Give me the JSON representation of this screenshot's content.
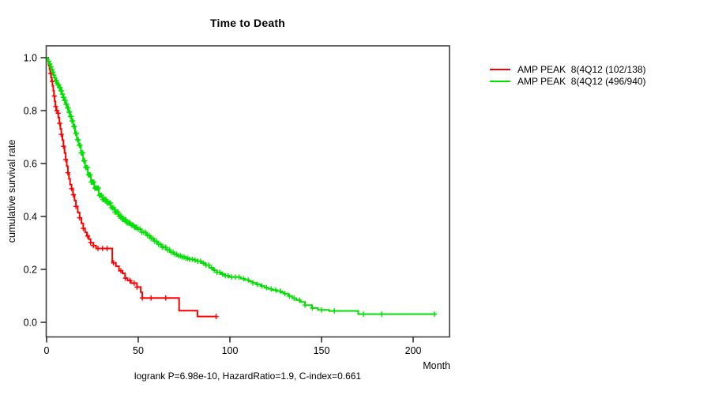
{
  "chart_data": {
    "type": "line",
    "subtype": "kaplan-meier-step",
    "title": "Time to Death",
    "xlabel": "Month",
    "ylabel": "cumulative survival rate",
    "footnote": "logrank P=6.98e-10, HazardRatio=1.9, C-index=0.661",
    "xlim": [
      0,
      220
    ],
    "ylim": [
      0.0,
      1.0
    ],
    "xticks": [
      0,
      50,
      100,
      150,
      200
    ],
    "yticks": [
      0.0,
      0.2,
      0.4,
      0.6,
      0.8,
      1.0
    ],
    "grid": "off",
    "legend_position": "right-outside",
    "axis_box_color": "#3f3f3f",
    "tick_color": "#000000",
    "series": [
      {
        "name": "AMP PEAK  8(4Q12 (102/138)",
        "color": "#ff0000",
        "points": [
          [
            0,
            1.0
          ],
          [
            0.8,
            0.985
          ],
          [
            1.2,
            0.97
          ],
          [
            1.6,
            0.955
          ],
          [
            2.0,
            0.94
          ],
          [
            2.4,
            0.925
          ],
          [
            2.8,
            0.91
          ],
          [
            3.2,
            0.893
          ],
          [
            3.6,
            0.875
          ],
          [
            4.0,
            0.855
          ],
          [
            4.4,
            0.835
          ],
          [
            4.8,
            0.815
          ],
          [
            5.2,
            0.8
          ],
          [
            5.8,
            0.79
          ],
          [
            6.4,
            0.773
          ],
          [
            7.0,
            0.752
          ],
          [
            7.5,
            0.731
          ],
          [
            8.0,
            0.71
          ],
          [
            8.6,
            0.688
          ],
          [
            9.2,
            0.665
          ],
          [
            9.8,
            0.64
          ],
          [
            10.4,
            0.615
          ],
          [
            11.0,
            0.59
          ],
          [
            11.6,
            0.565
          ],
          [
            12.2,
            0.542
          ],
          [
            12.8,
            0.52
          ],
          [
            13.6,
            0.505
          ],
          [
            14.4,
            0.482
          ],
          [
            15.2,
            0.46
          ],
          [
            16.0,
            0.438
          ],
          [
            17.0,
            0.415
          ],
          [
            18.0,
            0.395
          ],
          [
            19.0,
            0.374
          ],
          [
            20.0,
            0.355
          ],
          [
            21.0,
            0.34
          ],
          [
            22.0,
            0.326
          ],
          [
            23.0,
            0.314
          ],
          [
            24.0,
            0.301
          ],
          [
            25.5,
            0.29
          ],
          [
            27.0,
            0.279
          ],
          [
            35.8,
            0.225
          ],
          [
            37.8,
            0.212
          ],
          [
            39.5,
            0.195
          ],
          [
            41.4,
            0.185
          ],
          [
            42.8,
            0.167
          ],
          [
            44.2,
            0.158
          ],
          [
            46.0,
            0.148
          ],
          [
            49.3,
            0.133
          ],
          [
            51.4,
            0.113
          ],
          [
            52.2,
            0.092
          ],
          [
            72.3,
            0.044
          ],
          [
            82.3,
            0.022
          ],
          [
            92.5,
            0.022
          ]
        ],
        "censor_months": [
          2.2,
          3.1,
          4.2,
          5.0,
          5.6,
          6.3,
          7.1,
          8.0,
          9.2,
          10.4,
          11.6,
          13.6,
          14.6,
          16.0,
          18.0,
          20.0,
          22.4,
          24.0,
          25.5,
          28.0,
          30.5,
          33.0,
          36.5,
          40.5,
          43.0,
          45.5,
          47.8,
          49.3,
          52.2,
          57.0,
          65.0,
          92.5
        ]
      },
      {
        "name": "AMP PEAK  8(4Q12 (496/940)",
        "color": "#00e000",
        "points": [
          [
            0,
            1.0
          ],
          [
            0.5,
            0.995
          ],
          [
            1.0,
            0.986
          ],
          [
            1.5,
            0.976
          ],
          [
            2.0,
            0.966
          ],
          [
            2.6,
            0.955
          ],
          [
            3.2,
            0.945
          ],
          [
            3.8,
            0.934
          ],
          [
            4.4,
            0.924
          ],
          [
            5.0,
            0.913
          ],
          [
            5.6,
            0.903
          ],
          [
            6.2,
            0.897
          ],
          [
            6.9,
            0.887
          ],
          [
            7.6,
            0.875
          ],
          [
            8.3,
            0.862
          ],
          [
            9.0,
            0.85
          ],
          [
            9.7,
            0.838
          ],
          [
            10.4,
            0.824
          ],
          [
            11.2,
            0.81
          ],
          [
            12.0,
            0.794
          ],
          [
            12.8,
            0.778
          ],
          [
            13.6,
            0.761
          ],
          [
            14.5,
            0.74
          ],
          [
            15.5,
            0.714
          ],
          [
            16.5,
            0.69
          ],
          [
            17.5,
            0.669
          ],
          [
            18.7,
            0.64
          ],
          [
            19.9,
            0.61
          ],
          [
            21.0,
            0.585
          ],
          [
            22.5,
            0.557
          ],
          [
            24.2,
            0.53
          ],
          [
            26.0,
            0.507
          ],
          [
            28.5,
            0.48
          ],
          [
            30.5,
            0.464
          ],
          [
            32.8,
            0.451
          ],
          [
            35.0,
            0.433
          ],
          [
            37.1,
            0.417
          ],
          [
            39.2,
            0.401
          ],
          [
            41.4,
            0.388
          ],
          [
            43.5,
            0.376
          ],
          [
            45.7,
            0.367
          ],
          [
            47.8,
            0.359
          ],
          [
            49.3,
            0.352
          ],
          [
            52.0,
            0.34
          ],
          [
            54.3,
            0.328
          ],
          [
            56.5,
            0.317
          ],
          [
            58.6,
            0.306
          ],
          [
            60.8,
            0.295
          ],
          [
            62.9,
            0.284
          ],
          [
            65.1,
            0.274
          ],
          [
            67.2,
            0.265
          ],
          [
            69.4,
            0.257
          ],
          [
            71.5,
            0.251
          ],
          [
            73.7,
            0.247
          ],
          [
            76.0,
            0.242
          ],
          [
            78.0,
            0.238
          ],
          [
            80.2,
            0.235
          ],
          [
            82.3,
            0.231
          ],
          [
            84.4,
            0.224
          ],
          [
            86.6,
            0.216
          ],
          [
            88.7,
            0.206
          ],
          [
            90.9,
            0.197
          ],
          [
            93.0,
            0.189
          ],
          [
            95.3,
            0.182
          ],
          [
            97.4,
            0.176
          ],
          [
            99.6,
            0.171
          ],
          [
            106.0,
            0.165
          ],
          [
            108.2,
            0.16
          ],
          [
            110.3,
            0.155
          ],
          [
            112.5,
            0.149
          ],
          [
            114.6,
            0.143
          ],
          [
            116.8,
            0.137
          ],
          [
            118.9,
            0.131
          ],
          [
            121.0,
            0.126
          ],
          [
            123.2,
            0.122
          ],
          [
            125.4,
            0.118
          ],
          [
            127.6,
            0.113
          ],
          [
            129.7,
            0.108
          ],
          [
            131.8,
            0.099
          ],
          [
            134.0,
            0.091
          ],
          [
            136.2,
            0.084
          ],
          [
            138.4,
            0.077
          ],
          [
            141.0,
            0.065
          ],
          [
            144.8,
            0.054
          ],
          [
            148.0,
            0.047
          ],
          [
            154.2,
            0.043
          ],
          [
            170.0,
            0.031
          ],
          [
            212.4,
            0.031
          ]
        ],
        "censor_months": [
          1.2,
          1.8,
          2.4,
          3.0,
          3.5,
          4.0,
          4.5,
          5.0,
          5.4,
          5.8,
          6.2,
          6.6,
          7.0,
          7.4,
          7.8,
          8.2,
          8.6,
          9.0,
          9.4,
          9.8,
          10.2,
          10.6,
          11.0,
          11.4,
          11.8,
          12.2,
          12.6,
          13.0,
          13.4,
          13.8,
          14.3,
          14.8,
          15.3,
          15.8,
          16.3,
          16.8,
          17.3,
          17.8,
          18.3,
          18.8,
          19.3,
          19.8,
          20.3,
          20.8,
          21.3,
          21.8,
          22.3,
          22.8,
          23.3,
          23.8,
          24.3,
          24.8,
          25.3,
          25.8,
          26.3,
          26.8,
          27.3,
          27.8,
          28.3,
          28.8,
          29.4,
          30.0,
          30.6,
          31.2,
          31.8,
          32.4,
          33.0,
          33.6,
          34.2,
          34.8,
          35.4,
          36.0,
          36.6,
          37.2,
          37.8,
          38.4,
          39.0,
          39.6,
          40.2,
          40.8,
          41.4,
          42.0,
          42.6,
          43.2,
          43.8,
          44.4,
          45.0,
          45.6,
          46.2,
          46.8,
          47.4,
          48.0,
          48.6,
          49.2,
          50.0,
          51.0,
          52.0,
          53.0,
          54.0,
          55.0,
          56.0,
          57.0,
          58.0,
          59.0,
          60.0,
          61.0,
          62.0,
          63.0,
          64.0,
          65.0,
          66.0,
          67.0,
          68.0,
          69.0,
          70.0,
          71.0,
          72.0,
          73.0,
          74.0,
          75.0,
          76.0,
          77.0,
          78.0,
          79.5,
          81.0,
          82.5,
          84.0,
          85.5,
          87.0,
          88.5,
          90.0,
          91.5,
          93.0,
          94.5,
          96.0,
          97.5,
          99.0,
          101.0,
          103.0,
          105.0,
          107.5,
          110.0,
          112.5,
          115.0,
          117.5,
          120.0,
          122.5,
          125.0,
          127.5,
          130.0,
          132.5,
          135.0,
          138.0,
          141.0,
          145.0,
          150.0,
          157.0,
          172.9,
          182.9,
          211.6
        ]
      }
    ]
  }
}
